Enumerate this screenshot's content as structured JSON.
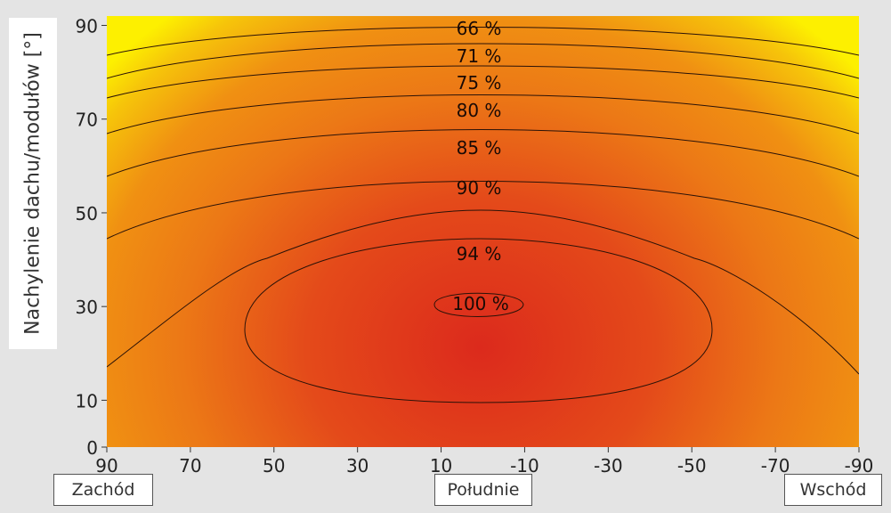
{
  "chart_data": {
    "type": "heatmap",
    "title": "",
    "ylabel": "Nachylenie dachu/modułów [°]",
    "xlabel": "",
    "x_ticks": [
      90,
      70,
      50,
      30,
      10,
      -10,
      -30,
      -50,
      -70,
      -90
    ],
    "y_ticks": [
      90,
      70,
      50,
      30,
      10,
      0
    ],
    "xlim": [
      90,
      -90
    ],
    "ylim": [
      0,
      92
    ],
    "direction_labels": {
      "west": "Zachód",
      "south": "Południe",
      "east": "Wschód"
    },
    "contours": [
      {
        "label": "66 %",
        "level": 66
      },
      {
        "label": "71 %",
        "level": 71
      },
      {
        "label": "75 %",
        "level": 75
      },
      {
        "label": "80 %",
        "level": 80
      },
      {
        "label": "85 %",
        "level": 85
      },
      {
        "label": "90 %",
        "level": 90
      },
      {
        "label": "94 %",
        "level": 94
      },
      {
        "label": "100 %",
        "level": 100
      }
    ],
    "peak": {
      "azimuth": 0,
      "tilt": 30,
      "value": 100
    },
    "colors": {
      "high": "#dc2a1c",
      "mid": "#ee8a14",
      "low": "#fdf000",
      "contour": "#2a1208"
    }
  }
}
